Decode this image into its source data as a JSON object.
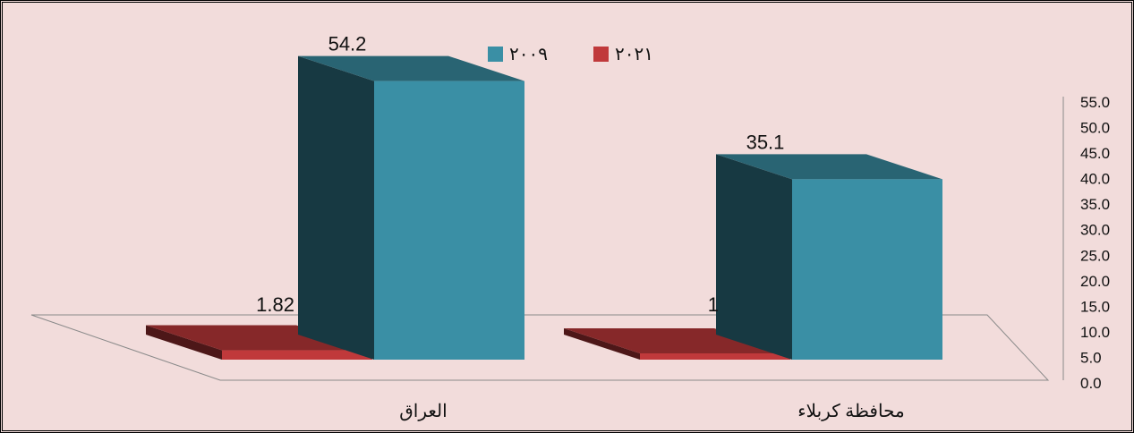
{
  "chart_data": {
    "type": "bar",
    "categories": [
      "العراق",
      "محافظة كربلاء"
    ],
    "series": [
      {
        "name": "٢٠٢١",
        "values": [
          1.82,
          1
        ],
        "labels": [
          "1.82",
          "1"
        ],
        "color": "#c0393b"
      },
      {
        "name": "٢٠٠٩",
        "values": [
          54.2,
          35.1
        ],
        "labels": [
          "54.2",
          "35.1"
        ],
        "color": "#3a8fa5"
      }
    ],
    "ylim": [
      0,
      55
    ],
    "yticks": [
      "0.0",
      "5.0",
      "10.0",
      "15.0",
      "20.0",
      "25.0",
      "30.0",
      "35.0",
      "40.0",
      "45.0",
      "50.0",
      "55.0"
    ],
    "legend_position": "top",
    "grid": false,
    "bar_style": "3d"
  }
}
